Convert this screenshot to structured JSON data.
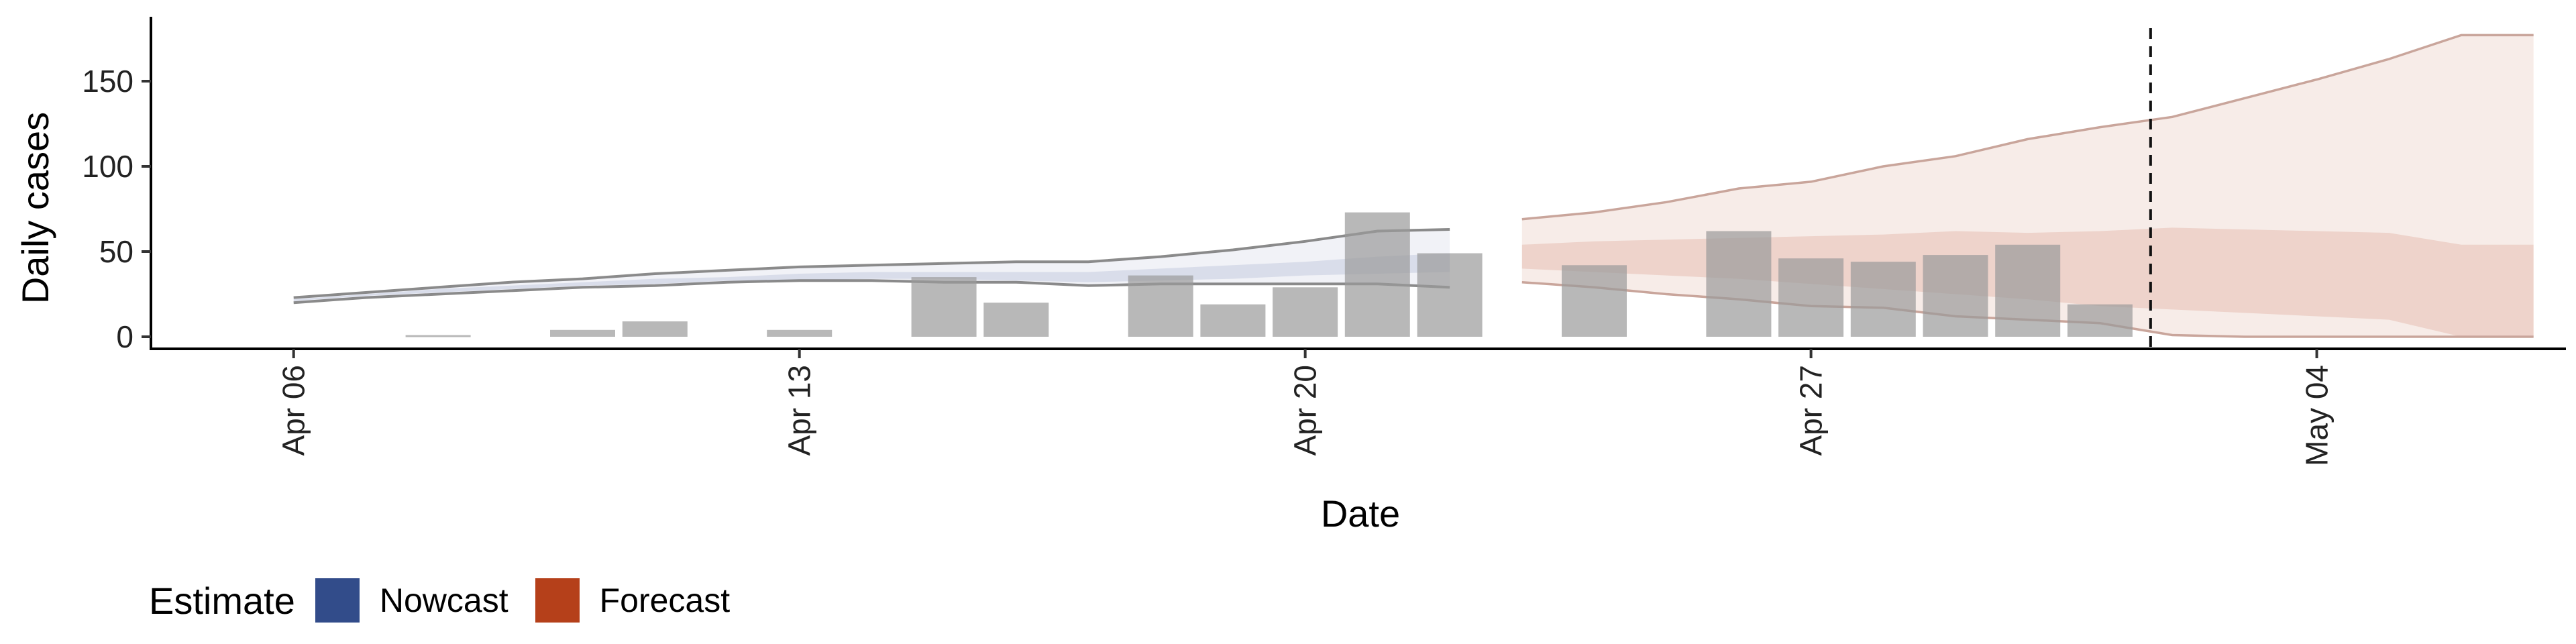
{
  "chart_data": {
    "type": "bar",
    "xlabel": "Date",
    "ylabel": "Daily cases",
    "x_ticks": [
      {
        "label": "Apr 06",
        "day": 0
      },
      {
        "label": "Apr 13",
        "day": 7
      },
      {
        "label": "Apr 20",
        "day": 14
      },
      {
        "label": "Apr 27",
        "day": 21
      },
      {
        "label": "May 04",
        "day": 28
      }
    ],
    "y_ticks": [
      0,
      50,
      100,
      150
    ],
    "xlim": [
      -2,
      31
    ],
    "ylim": [
      -8,
      185
    ],
    "grid": false,
    "vline_day": 25.7,
    "bars": [
      {
        "day": 2,
        "value": 1
      },
      {
        "day": 4,
        "value": 4
      },
      {
        "day": 5,
        "value": 9
      },
      {
        "day": 7,
        "value": 4
      },
      {
        "day": 9,
        "value": 35
      },
      {
        "day": 10,
        "value": 20
      },
      {
        "day": 12,
        "value": 36
      },
      {
        "day": 13,
        "value": 19
      },
      {
        "day": 14,
        "value": 29
      },
      {
        "day": 15,
        "value": 73
      },
      {
        "day": 16,
        "value": 49
      },
      {
        "day": 18,
        "value": 42
      },
      {
        "day": 20,
        "value": 62
      },
      {
        "day": 21,
        "value": 46
      },
      {
        "day": 22,
        "value": 44
      },
      {
        "day": 23,
        "value": 48
      },
      {
        "day": 24,
        "value": 54
      },
      {
        "day": 25,
        "value": 19
      }
    ],
    "nowcast": {
      "days": [
        0,
        1,
        2,
        3,
        4,
        5,
        6,
        7,
        8,
        9,
        10,
        11,
        12,
        13,
        14,
        15,
        16
      ],
      "upper90": [
        23,
        26,
        29,
        32,
        34,
        37,
        39,
        41,
        42,
        43,
        44,
        44,
        47,
        51,
        56,
        62,
        63
      ],
      "upper50": [
        22,
        25,
        28,
        30,
        32,
        34,
        35,
        37,
        38,
        38,
        38,
        38,
        40,
        42,
        44,
        47,
        49
      ],
      "lower50": [
        21,
        24,
        26,
        28,
        30,
        31,
        33,
        33,
        34,
        34,
        33,
        32,
        33,
        34,
        36,
        37,
        38
      ],
      "lower90": [
        20,
        23,
        25,
        27,
        29,
        30,
        32,
        33,
        33,
        32,
        32,
        30,
        31,
        31,
        31,
        31,
        29
      ]
    },
    "forecast": {
      "days": [
        17,
        18,
        19,
        20,
        21,
        22,
        23,
        24,
        25,
        26,
        27,
        28,
        29,
        30,
        31
      ],
      "upper90": [
        69,
        73,
        79,
        87,
        91,
        100,
        106,
        116,
        123,
        129,
        140,
        151,
        163,
        177,
        177
      ],
      "upper50": [
        54,
        56,
        57,
        58,
        59,
        60,
        62,
        61,
        62,
        64,
        63,
        62,
        61,
        54,
        54
      ],
      "lower50": [
        40,
        38,
        36,
        34,
        31,
        28,
        25,
        22,
        18,
        16,
        14,
        12,
        10,
        0,
        0
      ],
      "lower90": [
        32,
        29,
        25,
        22,
        18,
        17,
        12,
        10,
        8,
        1,
        0,
        0,
        0,
        0,
        0
      ]
    },
    "colors": {
      "bar": "#9a9a9a",
      "nowcast": "#324c8a",
      "forecast": "#b5401a",
      "band_line": "#777777",
      "forecast_line": "#c9a59b"
    },
    "legend": {
      "title": "Estimate",
      "items": [
        {
          "label": "Nowcast",
          "color": "#324c8a"
        },
        {
          "label": "Forecast",
          "color": "#b5401a"
        }
      ]
    }
  }
}
